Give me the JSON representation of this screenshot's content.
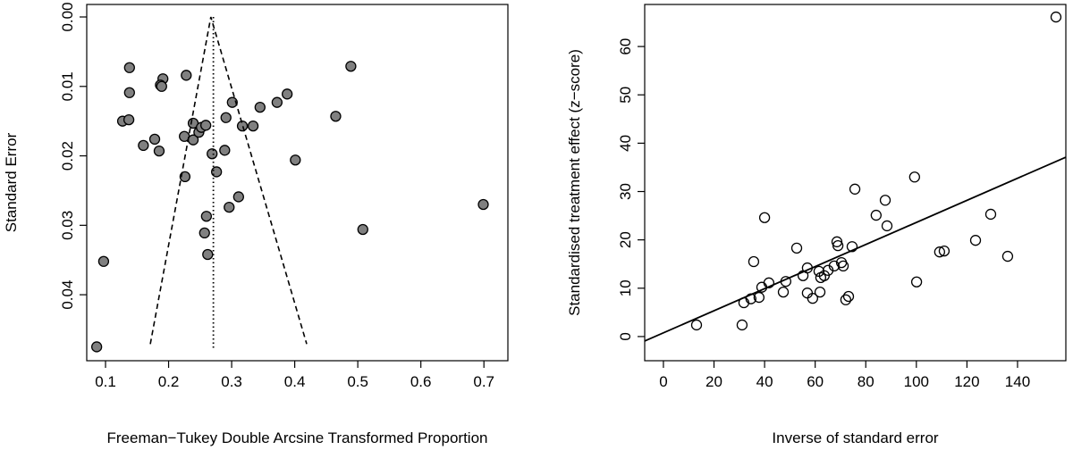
{
  "chart_data": [
    {
      "type": "scatter",
      "xlabel": "Freeman−Tukey Double Arcsine Transformed Proportion",
      "ylabel": "Standard Error",
      "x": [
        0.097,
        0.086,
        0.138,
        0.138,
        0.127,
        0.137,
        0.16,
        0.178,
        0.185,
        0.191,
        0.187,
        0.189,
        0.228,
        0.225,
        0.226,
        0.239,
        0.239,
        0.248,
        0.252,
        0.259,
        0.269,
        0.276,
        0.26,
        0.257,
        0.262,
        0.291,
        0.301,
        0.289,
        0.296,
        0.311,
        0.317,
        0.334,
        0.345,
        0.372,
        0.388,
        0.401,
        0.465,
        0.489,
        0.508,
        0.699
      ],
      "values": [
        0.0352,
        0.0475,
        0.0073,
        0.0109,
        0.015,
        0.0148,
        0.0185,
        0.0176,
        0.0193,
        0.0089,
        0.0098,
        0.01,
        0.0084,
        0.0172,
        0.023,
        0.0153,
        0.0177,
        0.0166,
        0.0159,
        0.0156,
        0.0197,
        0.0223,
        0.0287,
        0.0311,
        0.0342,
        0.0145,
        0.0123,
        0.0192,
        0.0274,
        0.0259,
        0.0157,
        0.0157,
        0.013,
        0.0123,
        0.0111,
        0.0206,
        0.0143,
        0.0071,
        0.0306,
        0.027
      ],
      "marker_fill": "#808080",
      "xlim": [
        0.0702,
        0.738
      ],
      "ylim": [
        0.0495,
        -0.0018
      ],
      "xticks": [
        0.1,
        0.2,
        0.3,
        0.4,
        0.5,
        0.6,
        0.7
      ],
      "yticks": [
        {
          "value": 0,
          "label": "0.00"
        },
        0.01,
        0.02,
        0.03,
        0.04
      ],
      "funnel": {
        "apex": [
          0.267,
          0
        ],
        "left_base": [
          0.171,
          0.0471
        ],
        "right_base": [
          0.419,
          0.0471
        ]
      },
      "pooled_line": {
        "x": 0.271,
        "y": [
          0,
          0.0477
        ]
      }
    },
    {
      "type": "scatter",
      "xlabel": "Inverse of standard error",
      "ylabel": "Standardised treatment effect (z−score)",
      "x": [
        13.1,
        31.1,
        31.8,
        34.6,
        35.7,
        37.8,
        38.9,
        40.0,
        41.7,
        47.4,
        48.4,
        52.7,
        55.2,
        56.9,
        56.9,
        59.0,
        61.5,
        61.9,
        62.2,
        63.6,
        65.1,
        67.5,
        68.6,
        69.0,
        70.4,
        71.1,
        72.1,
        73.2,
        74.6,
        75.7,
        84.1,
        87.7,
        88.4,
        99.3,
        100.1,
        109.2,
        111.0,
        123.4,
        129.4,
        136.1,
        155.2
      ],
      "values": [
        2.4,
        2.4,
        7.0,
        7.8,
        15.5,
        8.1,
        10.2,
        24.6,
        11.1,
        9.2,
        11.4,
        18.3,
        12.6,
        14.2,
        9.0,
        7.9,
        13.5,
        9.2,
        12.2,
        12.6,
        13.7,
        14.6,
        19.6,
        18.8,
        15.3,
        14.6,
        7.6,
        8.3,
        18.6,
        30.5,
        25.1,
        28.2,
        22.9,
        33.0,
        11.3,
        17.5,
        17.7,
        19.9,
        25.3,
        16.6,
        66.1
      ],
      "marker_fill": "none",
      "xlim": [
        -7.4,
        159.1
      ],
      "ylim": [
        -5.0,
        68.7
      ],
      "xticks": [
        0,
        20,
        40,
        60,
        80,
        100,
        120,
        140
      ],
      "yticks": [
        0,
        10,
        20,
        30,
        40,
        50,
        60
      ],
      "fit": {
        "intercept": 0.77,
        "slope": 0.2284
      }
    }
  ]
}
